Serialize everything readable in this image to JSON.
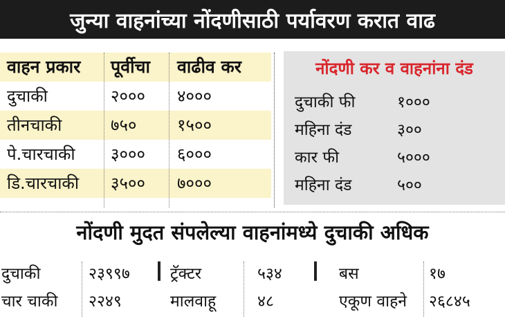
{
  "title": "जुन्या वाहनांच्या नोंदणीसाठी पर्यावरण करात वाढ",
  "left_table": {
    "headers": [
      "वाहन प्रकार",
      "पूर्वीचा",
      "वाढीव कर"
    ],
    "rows": [
      [
        "दुचाकी",
        "२०००",
        "४०००"
      ],
      [
        "तीनचाकी",
        "७५०",
        "१५००"
      ],
      [
        "पे.चारचाकी",
        "३०००",
        "६०००"
      ],
      [
        "डि.चारचाकी",
        "३५००",
        "७०००"
      ]
    ],
    "highlight_color": "#fbf3c9"
  },
  "right_panel": {
    "title": "नोंदणी कर व वाहनांना दंड",
    "title_color": "#d9262d",
    "rows": [
      [
        "दुचाकी फी",
        "१०००"
      ],
      [
        "महिना दंड",
        "३००"
      ],
      [
        "कार फी",
        "५०००"
      ],
      [
        "महिना दंड",
        "५००"
      ]
    ]
  },
  "subtitle": "नोंदणी मुदत संपलेल्या वाहनांमध्ये दुचाकी अधिक",
  "stats": {
    "col1": [
      [
        "दुचाकी",
        "२३९९७"
      ],
      [
        "चार चाकी",
        "२२४९"
      ]
    ],
    "col2": [
      [
        "ट्रॅक्टर",
        "५३४"
      ],
      [
        "मालवाहू",
        "४८"
      ]
    ],
    "col3": [
      [
        "बस",
        "१७"
      ],
      [
        "एकूण वाहने",
        "२६८४५"
      ]
    ]
  }
}
